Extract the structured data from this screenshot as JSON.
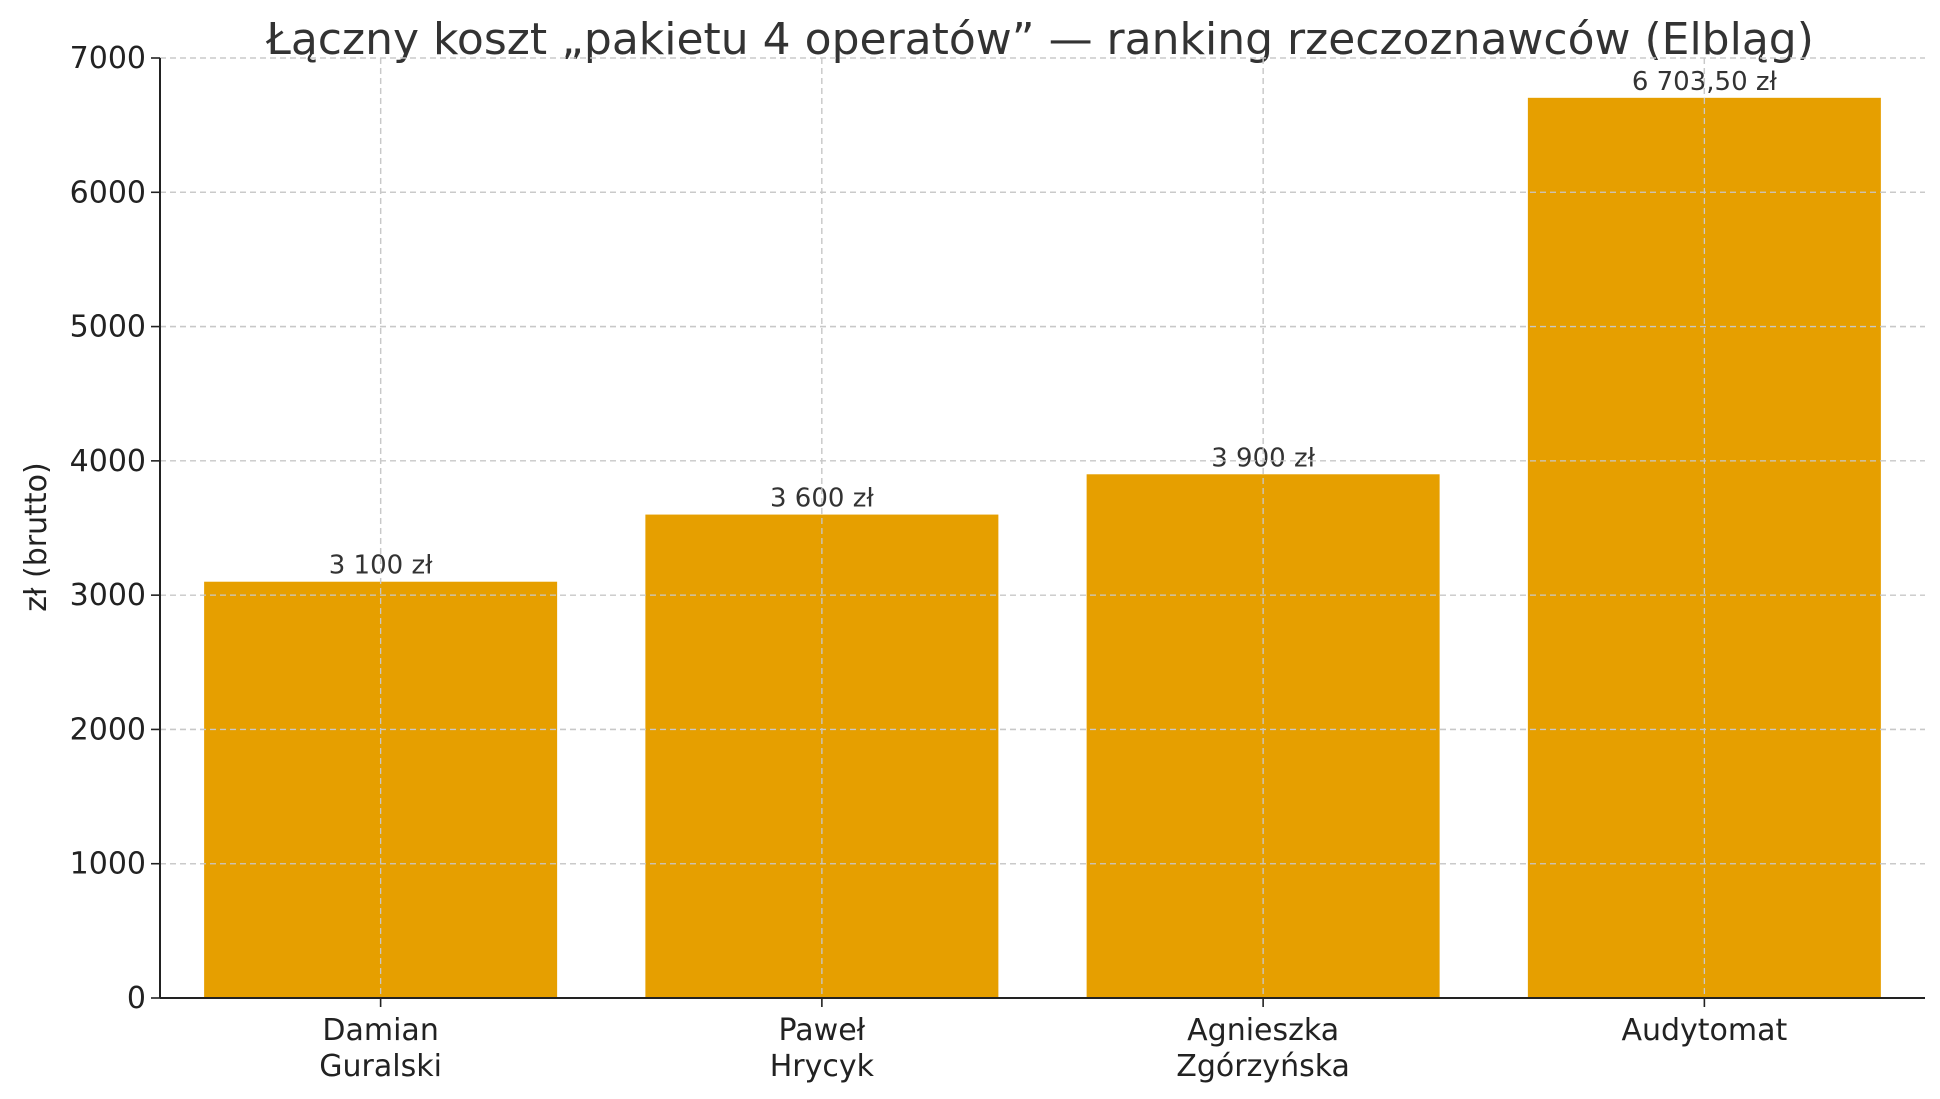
{
  "chart_data": {
    "type": "bar",
    "title": "Łączny koszt „pakietu 4 operatów” — ranking rzeczoznawców (Elbląg)",
    "xlabel": "",
    "ylabel": "zł (brutto)",
    "ylim": [
      0,
      7000
    ],
    "yticks": [
      0,
      1000,
      2000,
      3000,
      4000,
      5000,
      6000,
      7000
    ],
    "grid": true,
    "categories": [
      [
        "Damian",
        "Guralski"
      ],
      [
        "Paweł",
        "Hrycyk"
      ],
      [
        "Agnieszka",
        "Zgórzyńska"
      ],
      [
        "Audytomat"
      ]
    ],
    "values": [
      3100,
      3600,
      3900,
      6703.5
    ],
    "value_labels": [
      "3 100 zł",
      "3 600 zł",
      "3 900 zł",
      "6 703,50 zł"
    ],
    "bar_color": "#E69F00"
  }
}
